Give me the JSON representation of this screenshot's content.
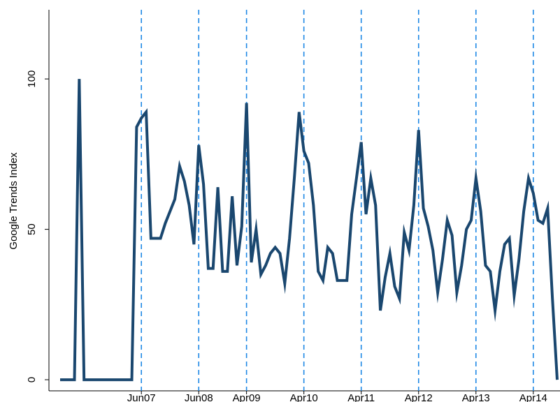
{
  "chart_data": {
    "type": "line",
    "y_label": "Google Trends Index",
    "x": [
      "2006-01",
      "2006-02",
      "2006-03",
      "2006-04",
      "2006-05",
      "2006-06",
      "2006-07",
      "2006-08",
      "2006-09",
      "2006-10",
      "2006-11",
      "2006-12",
      "2007-01",
      "2007-02",
      "2007-03",
      "2007-04",
      "2007-05",
      "2007-06",
      "2007-07",
      "2007-08",
      "2007-09",
      "2007-10",
      "2007-11",
      "2007-12",
      "2008-01",
      "2008-02",
      "2008-03",
      "2008-04",
      "2008-05",
      "2008-06",
      "2008-07",
      "2008-08",
      "2008-09",
      "2008-10",
      "2008-11",
      "2008-12",
      "2009-01",
      "2009-02",
      "2009-03",
      "2009-04",
      "2009-05",
      "2009-06",
      "2009-07",
      "2009-08",
      "2009-09",
      "2009-10",
      "2009-11",
      "2009-12",
      "2010-01",
      "2010-02",
      "2010-03",
      "2010-04",
      "2010-05",
      "2010-06",
      "2010-07",
      "2010-08",
      "2010-09",
      "2010-10",
      "2010-11",
      "2010-12",
      "2011-01",
      "2011-02",
      "2011-03",
      "2011-04",
      "2011-05",
      "2011-06",
      "2011-07",
      "2011-08",
      "2011-09",
      "2011-10",
      "2011-11",
      "2011-12",
      "2012-01",
      "2012-02",
      "2012-03",
      "2012-04",
      "2012-05",
      "2012-06",
      "2012-07",
      "2012-08",
      "2012-09",
      "2012-10",
      "2012-11",
      "2012-12",
      "2013-01",
      "2013-02",
      "2013-03",
      "2013-04",
      "2013-05",
      "2013-06",
      "2013-07",
      "2013-08",
      "2013-09",
      "2013-10",
      "2013-11",
      "2013-12",
      "2014-01",
      "2014-02",
      "2014-03",
      "2014-04",
      "2014-05",
      "2014-06",
      "2014-07",
      "2014-08",
      "2014-09"
    ],
    "series": [
      {
        "color": "#1a476f",
        "values": [
          0,
          0,
          0,
          0,
          100,
          0,
          0,
          0,
          0,
          0,
          0,
          0,
          0,
          0,
          0,
          0,
          84,
          87,
          89,
          47,
          47,
          47,
          52,
          56,
          60,
          71,
          66,
          58,
          45,
          78,
          65,
          37,
          37,
          64,
          36,
          36,
          61,
          38,
          51,
          92,
          39,
          50,
          35,
          38,
          42,
          44,
          42,
          32,
          47,
          67,
          89,
          76,
          72,
          58,
          36,
          33,
          44,
          42,
          33,
          33,
          33,
          55,
          67,
          79,
          55,
          67,
          58,
          23,
          34,
          42,
          31,
          27,
          49,
          43,
          58,
          83,
          57,
          51,
          43,
          29,
          40,
          53,
          48,
          29,
          38,
          50,
          53,
          67,
          56,
          38,
          36,
          23,
          36,
          45,
          47,
          28,
          40,
          56,
          67,
          62,
          53,
          52,
          57,
          27,
          0
        ]
      }
    ],
    "xlim": [
      "2006-01",
      "2014-09"
    ],
    "xticks": [
      {
        "value": "2007-06",
        "label": "Jun07"
      },
      {
        "value": "2008-06",
        "label": "Jun08"
      },
      {
        "value": "2009-04",
        "label": "Apr09"
      },
      {
        "value": "2010-04",
        "label": "Apr10"
      },
      {
        "value": "2011-04",
        "label": "Apr11"
      },
      {
        "value": "2012-04",
        "label": "Apr12"
      },
      {
        "value": "2013-04",
        "label": "Apr13"
      },
      {
        "value": "2014-04",
        "label": "Apr14"
      }
    ],
    "xline_color": "#1e88e5",
    "ylim": [
      -3,
      123
    ],
    "yticks": [
      0,
      50,
      100
    ]
  }
}
